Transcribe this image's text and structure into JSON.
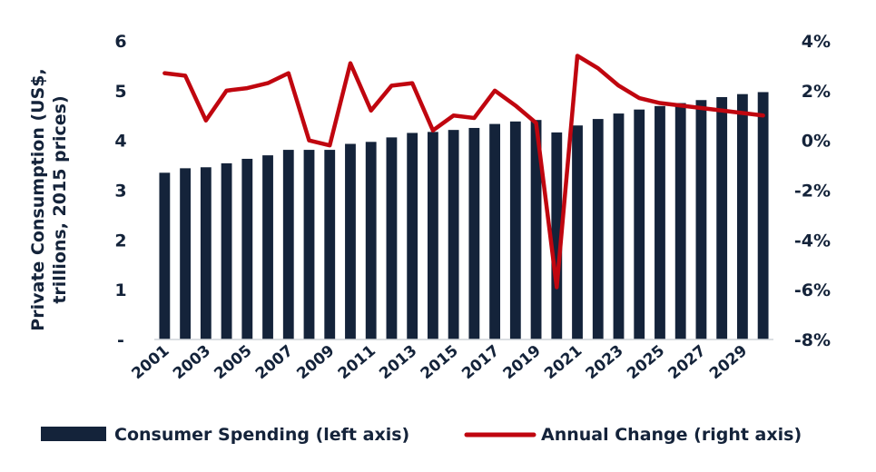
{
  "chart_data": {
    "type": "bar",
    "years": [
      "2001",
      "2002",
      "2003",
      "2004",
      "2005",
      "2006",
      "2007",
      "2008",
      "2009",
      "2010",
      "2011",
      "2012",
      "2013",
      "2014",
      "2015",
      "2016",
      "2017",
      "2018",
      "2019",
      "2020",
      "2021",
      "2022",
      "2023",
      "2024",
      "2025",
      "2026",
      "2027",
      "2028",
      "2029",
      "2030"
    ],
    "x_tick_labels": [
      "2001",
      "2003",
      "2005",
      "2007",
      "2009",
      "2011",
      "2013",
      "2015",
      "2017",
      "2019",
      "2021",
      "2023",
      "2025",
      "2027",
      "2029"
    ],
    "series": [
      {
        "name": "Consumer Spending (left axis)",
        "type": "bar",
        "axis": "left",
        "values": [
          3.35,
          3.44,
          3.46,
          3.54,
          3.63,
          3.7,
          3.81,
          3.81,
          3.81,
          3.93,
          3.97,
          4.06,
          4.15,
          4.17,
          4.21,
          4.25,
          4.33,
          4.38,
          4.41,
          4.16,
          4.3,
          4.43,
          4.54,
          4.62,
          4.69,
          4.75,
          4.81,
          4.87,
          4.93,
          4.97
        ]
      },
      {
        "name": "Annual Change (right axis)",
        "type": "line",
        "axis": "right",
        "values": [
          2.7,
          2.6,
          0.8,
          2.0,
          2.1,
          2.3,
          2.7,
          0.0,
          -0.2,
          3.1,
          1.2,
          2.2,
          2.3,
          0.4,
          1.0,
          0.9,
          2.0,
          1.4,
          0.7,
          -5.9,
          3.4,
          2.9,
          2.2,
          1.7,
          1.5,
          1.4,
          1.3,
          1.2,
          1.1,
          1.0
        ]
      }
    ],
    "ylabel": "Private Consumption (US$, trillions, 2015 prices)",
    "ylabel_lines": [
      "Private Consumption (US$,",
      "trillions, 2015 prices)"
    ],
    "y_left": {
      "ylim": [
        0,
        6
      ],
      "tick_labels": [
        "-",
        "1",
        "2",
        "3",
        "4",
        "5",
        "6"
      ]
    },
    "y_right": {
      "ylim": [
        -8,
        4
      ],
      "tick_labels": [
        "-8%",
        "-6%",
        "-4%",
        "-2%",
        "0%",
        "2%",
        "4%"
      ]
    },
    "grid": false,
    "legend_position": "bottom",
    "colors": {
      "bar": "#14233a",
      "line": "#c0060f",
      "text": "#14233a"
    }
  }
}
